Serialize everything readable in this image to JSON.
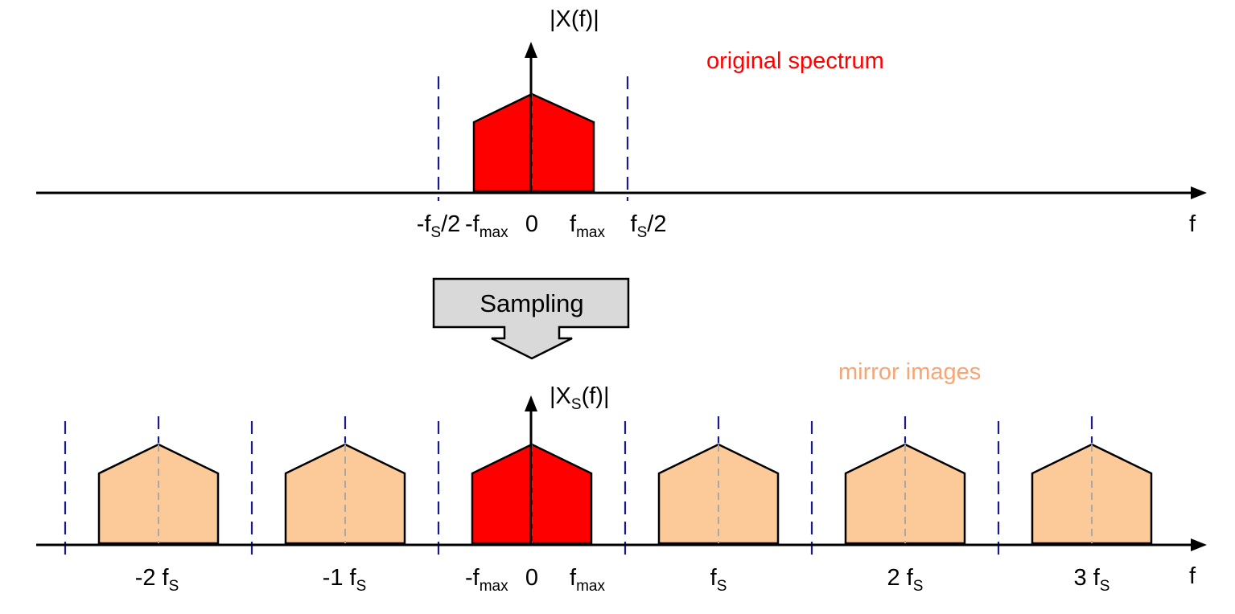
{
  "colors": {
    "original_fill": "#ff0000",
    "mirror_fill": "#fcca98",
    "outline": "#000000",
    "guide_line": "#1a1a8c",
    "center_line": "#a8a8a8",
    "arrow_fill": "#d9d9d9",
    "original_label": "#ff0000",
    "mirror_label": "#f5a677"
  },
  "top": {
    "y_label": {
      "main": "|X(f)|"
    },
    "annotation": "original spectrum",
    "x_axis_label": "f",
    "ticks": [
      {
        "id": "neg-fs-half",
        "pre": "-f",
        "sub": "S",
        "post": "/2"
      },
      {
        "id": "neg-fmax",
        "pre": "-f",
        "sub": "max",
        "post": ""
      },
      {
        "id": "zero",
        "pre": "0",
        "sub": "",
        "post": ""
      },
      {
        "id": "fmax",
        "pre": "f",
        "sub": "max",
        "post": ""
      },
      {
        "id": "fs-half",
        "pre": "f",
        "sub": "S",
        "post": "/2"
      }
    ]
  },
  "process": {
    "label": "Sampling",
    "icon": "down-arrow-icon"
  },
  "bottom": {
    "y_label": {
      "pre": "|X",
      "sub": "S",
      "post": "(f)|"
    },
    "annotation": "mirror images",
    "x_axis_label": "f",
    "replicas": [
      {
        "shift": -2,
        "kind": "mirror"
      },
      {
        "shift": -1,
        "kind": "mirror"
      },
      {
        "shift": 0,
        "kind": "original"
      },
      {
        "shift": 1,
        "kind": "mirror"
      },
      {
        "shift": 2,
        "kind": "mirror"
      },
      {
        "shift": 3,
        "kind": "mirror"
      }
    ],
    "ticks": [
      {
        "id": "neg-2fs",
        "pre": "-2 f",
        "sub": "S",
        "post": ""
      },
      {
        "id": "neg-1fs",
        "pre": "-1 f",
        "sub": "S",
        "post": ""
      },
      {
        "id": "neg-fmax",
        "pre": "-f",
        "sub": "max",
        "post": ""
      },
      {
        "id": "zero",
        "pre": "0",
        "sub": "",
        "post": ""
      },
      {
        "id": "fmax",
        "pre": "f",
        "sub": "max",
        "post": ""
      },
      {
        "id": "fs",
        "pre": "f",
        "sub": "S",
        "post": ""
      },
      {
        "id": "2fs",
        "pre": "2 f",
        "sub": "S",
        "post": ""
      },
      {
        "id": "3fs",
        "pre": "3 f",
        "sub": "S",
        "post": ""
      }
    ]
  }
}
